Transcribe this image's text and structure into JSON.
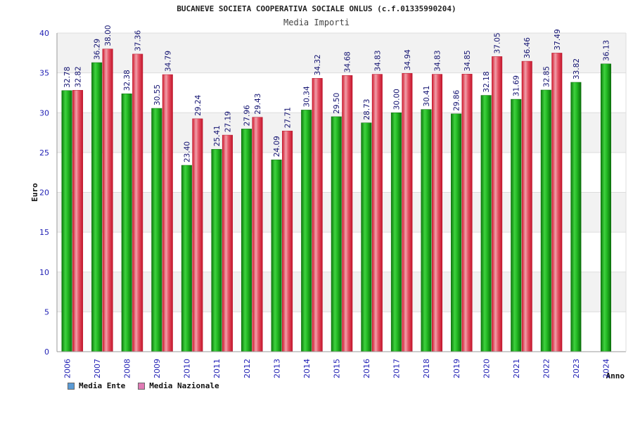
{
  "title": "BUCANEVE SOCIETA COOPERATIVA SOCIALE ONLUS (c.f.01335990204)",
  "subtitle": "Media Importi",
  "colors": {
    "ente": "#17a317",
    "nazionale": "#e23a4c",
    "legend_ente": "#5b9bd5",
    "legend_nazionale": "#e07bb5",
    "axis_text": "#1f1fb4",
    "label_text": "#111170"
  },
  "legend": {
    "ente": "Media Ente",
    "nazionale": "Media Nazionale"
  },
  "chart_data": {
    "type": "bar",
    "title": "BUCANEVE SOCIETA COOPERATIVA SOCIALE ONLUS (c.f.01335990204)",
    "subtitle": "Media Importi",
    "xlabel": "Anno",
    "ylabel": "Euro",
    "ylim": [
      0,
      40
    ],
    "yticks": [
      0,
      5,
      10,
      15,
      20,
      25,
      30,
      35,
      40
    ],
    "grid": true,
    "legend_position": "bottom-left",
    "categories": [
      "2006",
      "2007",
      "2008",
      "2009",
      "2010",
      "2011",
      "2012",
      "2013",
      "2014",
      "2015",
      "2016",
      "2017",
      "2018",
      "2019",
      "2020",
      "2021",
      "2022",
      "2023",
      "2024"
    ],
    "series": [
      {
        "name": "Media Ente",
        "values": [
          32.78,
          36.29,
          32.38,
          30.55,
          23.4,
          25.41,
          27.96,
          24.09,
          30.34,
          29.5,
          28.73,
          30.0,
          30.41,
          29.86,
          32.18,
          31.69,
          32.85,
          33.82,
          36.13
        ],
        "labels": [
          "32.78",
          "36.29",
          "32.38",
          "30.55",
          "23.40",
          "25.41",
          "27.96",
          "24.09",
          "30.34",
          "29.50",
          "28.73",
          "30.00",
          "30.41",
          "29.86",
          "32.18",
          "31.69",
          "32.85",
          "33.82",
          "36.13"
        ]
      },
      {
        "name": "Media Nazionale",
        "values": [
          32.82,
          38.0,
          37.36,
          34.79,
          29.24,
          27.19,
          29.43,
          27.71,
          34.32,
          34.68,
          34.83,
          34.94,
          34.83,
          34.85,
          37.05,
          36.46,
          37.49,
          null,
          null
        ],
        "labels": [
          "32.82",
          "38.00",
          "37.36",
          "34.79",
          "29.24",
          "27.19",
          "29.43",
          "27.71",
          "34.32",
          "34.68",
          "34.83",
          "34.94",
          "34.83",
          "34.85",
          "37.05",
          "36.46",
          "37.49",
          null,
          null
        ]
      }
    ]
  }
}
